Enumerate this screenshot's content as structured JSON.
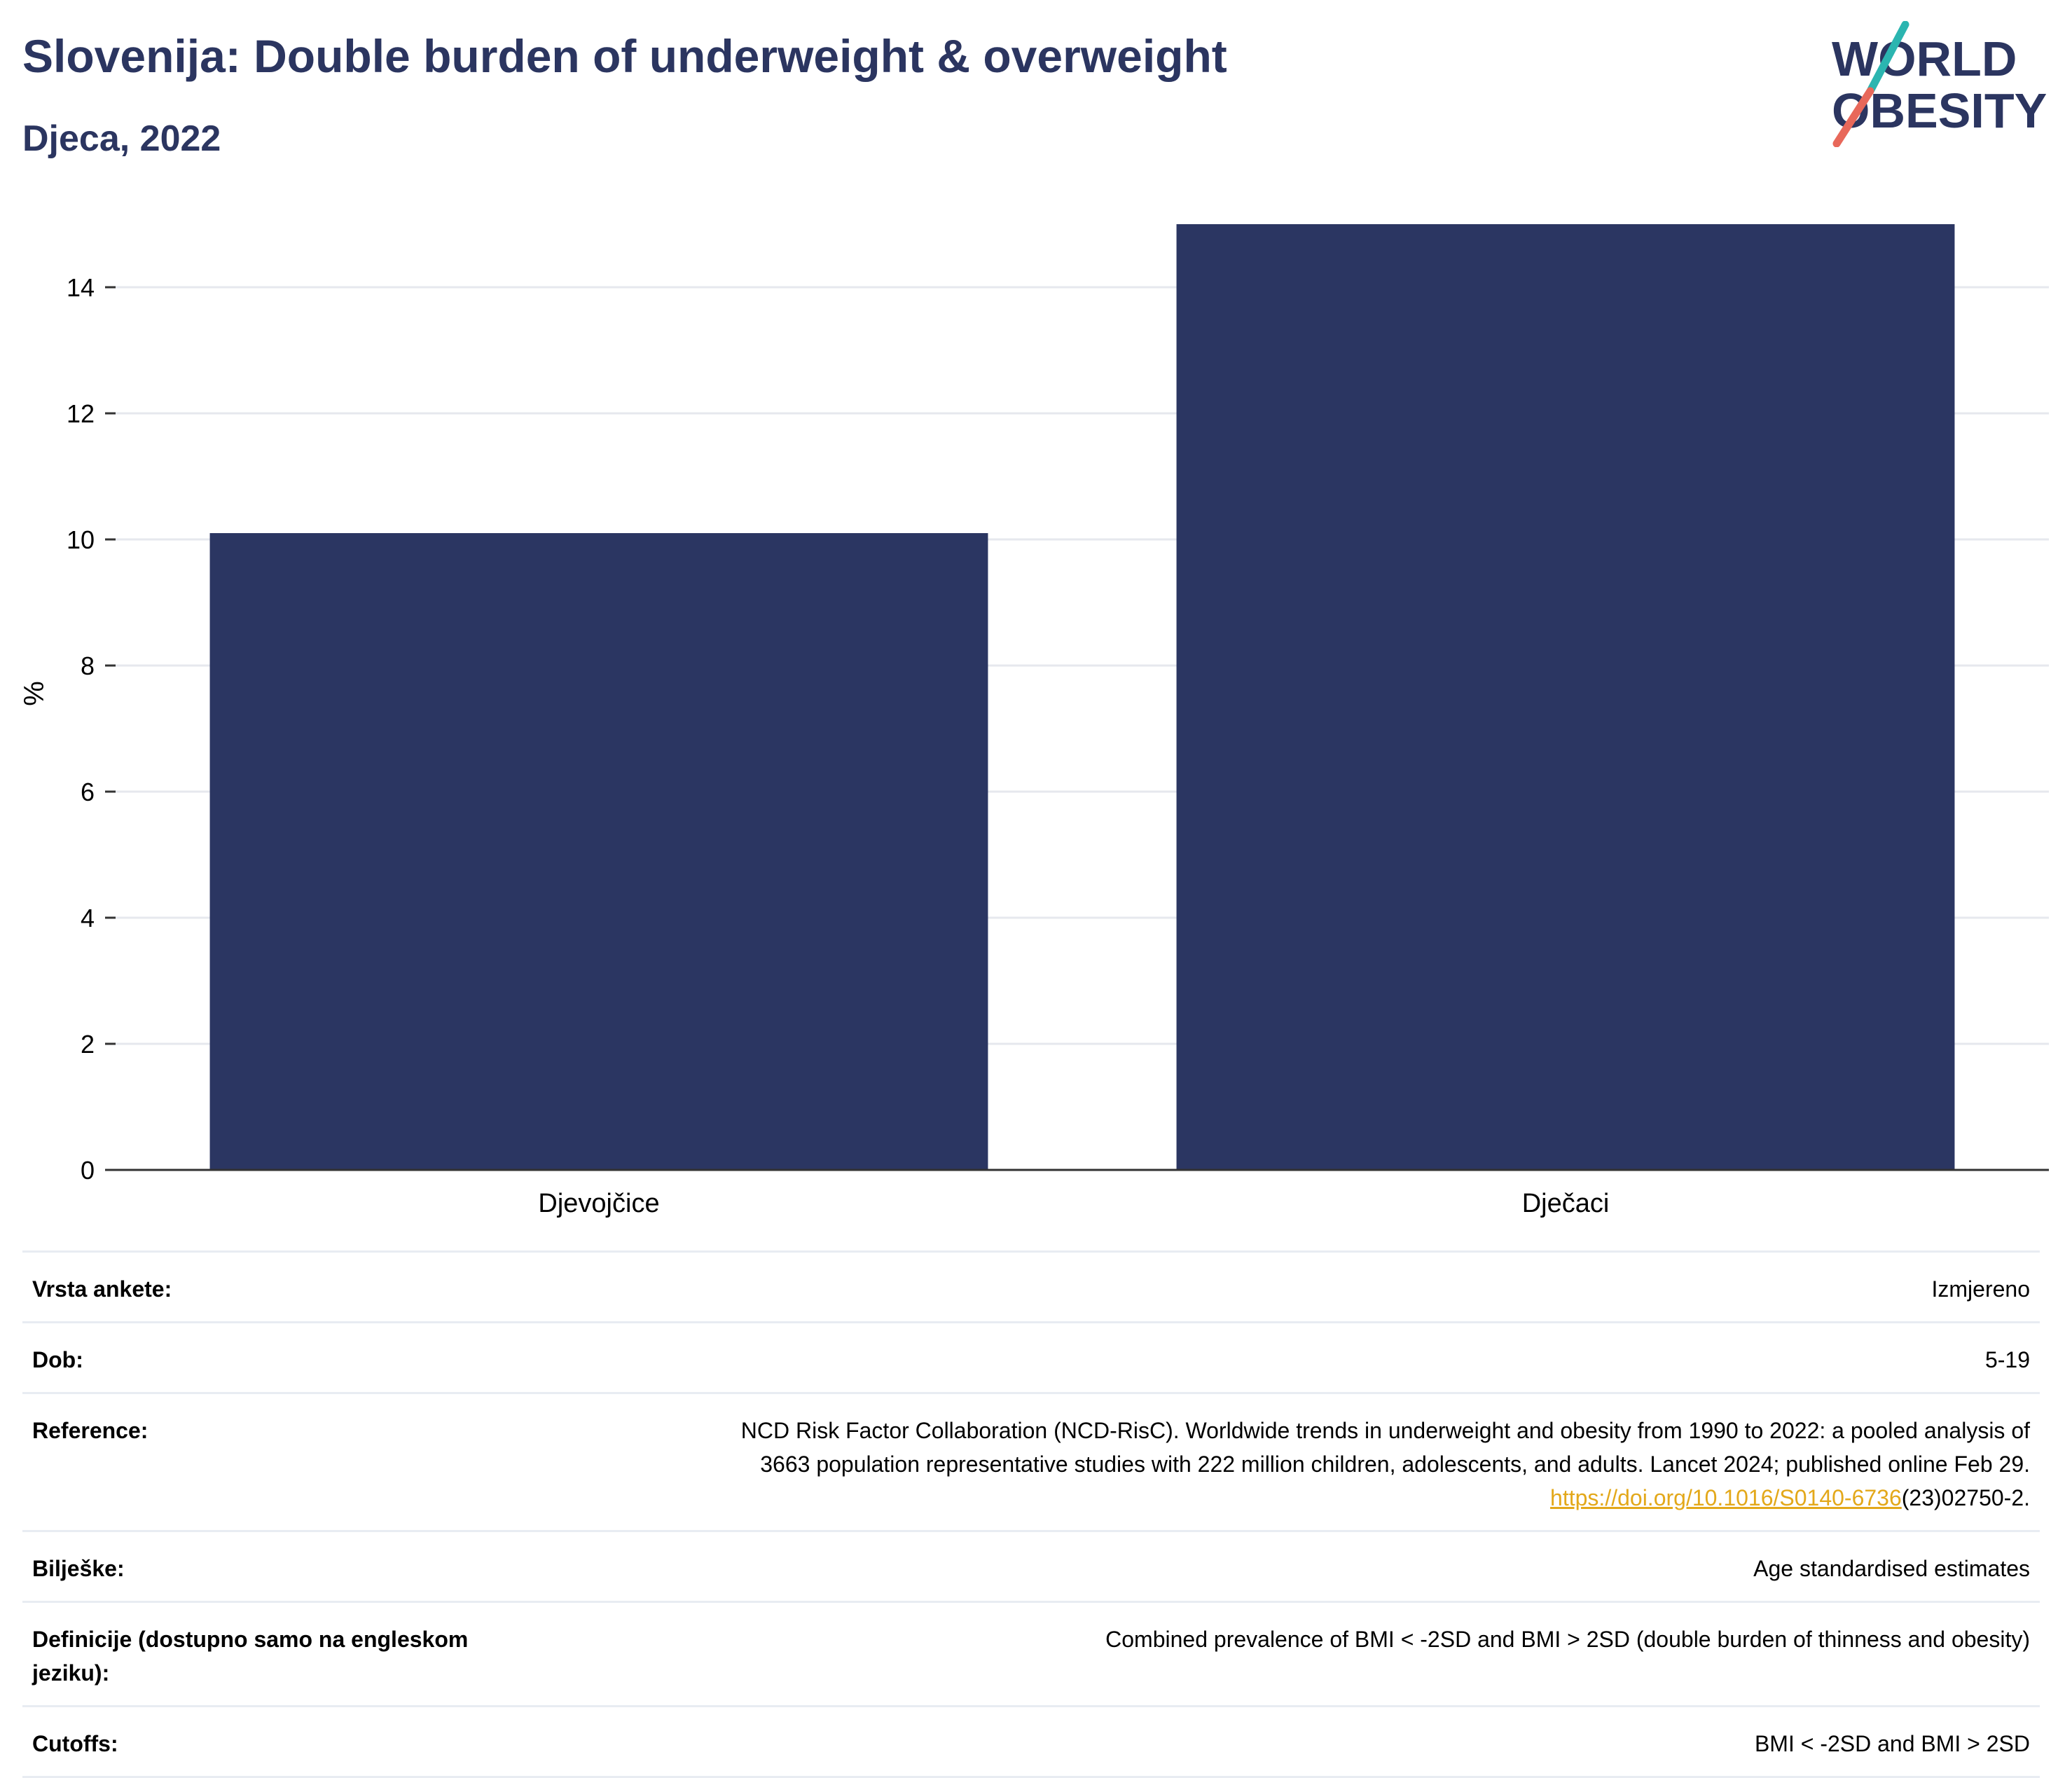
{
  "header": {
    "title": "Slovenija: Double burden of underweight & overweight",
    "subtitle": "Djeca, 2022"
  },
  "logo": {
    "line1": "WORLD",
    "line2": "OBESITY",
    "colors": {
      "text": "#2b3560",
      "teal": "#2bb5b0",
      "coral": "#e8685a"
    }
  },
  "colors": {
    "bar": "#2b3662",
    "grid": "#e6e8ee",
    "axis": "#333333",
    "link": "#e3a81a"
  },
  "chart_data": {
    "type": "bar",
    "categories": [
      "Djevojčice",
      "Dječaci"
    ],
    "values": [
      10.1,
      15.0
    ],
    "ylabel": "%",
    "ylim": [
      0,
      15
    ],
    "yticks": [
      0,
      2,
      4,
      6,
      8,
      10,
      12,
      14
    ],
    "grid": true
  },
  "meta": {
    "rows": [
      {
        "label": "Vrsta ankete:",
        "value": "Izmjereno"
      },
      {
        "label": "Dob:",
        "value": "5-19"
      },
      {
        "label": "Reference:",
        "value_line1": "NCD Risk Factor Collaboration (NCD-RisC). Worldwide trends in underweight and obesity from 1990 to 2022: a pooled analysis of",
        "value_line2": "3663 population representative studies with 222 million children, adolescents, and adults. Lancet 2024; published online Feb 29.",
        "link_text": "https://doi.org/10.1016/S0140-6736",
        "link_suffix": "(23)02750-2."
      },
      {
        "label": "Bilješke:",
        "value": "Age standardised estimates"
      },
      {
        "label": "Definicije (dostupno samo na engleskom jeziku):",
        "value": "Combined prevalence of BMI < -2SD and BMI > 2SD (double burden of thinness and obesity)"
      },
      {
        "label": "Cutoffs:",
        "value": "BMI < -2SD and BMI > 2SD"
      }
    ]
  }
}
